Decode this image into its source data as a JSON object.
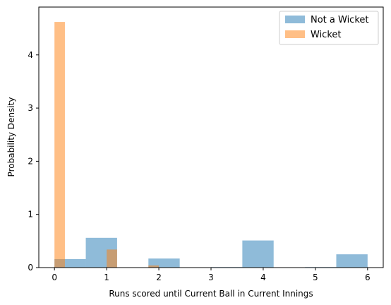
{
  "chart_data": {
    "type": "bar",
    "title": "",
    "xlabel": "Runs scored until Current Ball in Current Innings",
    "ylabel": "Probability Density",
    "xlim": [
      -0.3,
      6.3
    ],
    "ylim": [
      0,
      4.9
    ],
    "xticks": [
      0,
      1,
      2,
      3,
      4,
      5,
      6
    ],
    "yticks": [
      0,
      1,
      2,
      3,
      4
    ],
    "legend_position": "top-right",
    "grid": false,
    "series": [
      {
        "name": "Not a Wicket",
        "color": "#1f77b4",
        "alpha": 0.5,
        "bins": [
          {
            "x0": 0.0,
            "x1": 0.6,
            "value": 0.16
          },
          {
            "x0": 0.6,
            "x1": 1.2,
            "value": 0.56
          },
          {
            "x0": 1.2,
            "x1": 1.8,
            "value": 0.0
          },
          {
            "x0": 1.8,
            "x1": 2.4,
            "value": 0.17
          },
          {
            "x0": 2.4,
            "x1": 3.0,
            "value": 0.0
          },
          {
            "x0": 3.0,
            "x1": 3.6,
            "value": 0.01
          },
          {
            "x0": 3.6,
            "x1": 4.2,
            "value": 0.51
          },
          {
            "x0": 4.2,
            "x1": 4.8,
            "value": 0.0
          },
          {
            "x0": 4.8,
            "x1": 5.4,
            "value": 0.01
          },
          {
            "x0": 5.4,
            "x1": 6.0,
            "value": 0.25
          }
        ]
      },
      {
        "name": "Wicket",
        "color": "#ff7f0e",
        "alpha": 0.5,
        "bins": [
          {
            "x0": 0.0,
            "x1": 0.2,
            "value": 4.62
          },
          {
            "x0": 0.2,
            "x1": 0.4,
            "value": 0.0
          },
          {
            "x0": 0.4,
            "x1": 0.6,
            "value": 0.0
          },
          {
            "x0": 0.6,
            "x1": 0.8,
            "value": 0.0
          },
          {
            "x0": 0.8,
            "x1": 1.0,
            "value": 0.0
          },
          {
            "x0": 1.0,
            "x1": 1.2,
            "value": 0.34
          },
          {
            "x0": 1.2,
            "x1": 1.4,
            "value": 0.0
          },
          {
            "x0": 1.4,
            "x1": 1.6,
            "value": 0.0
          },
          {
            "x0": 1.6,
            "x1": 1.8,
            "value": 0.0
          },
          {
            "x0": 1.8,
            "x1": 2.0,
            "value": 0.04
          }
        ]
      }
    ]
  }
}
